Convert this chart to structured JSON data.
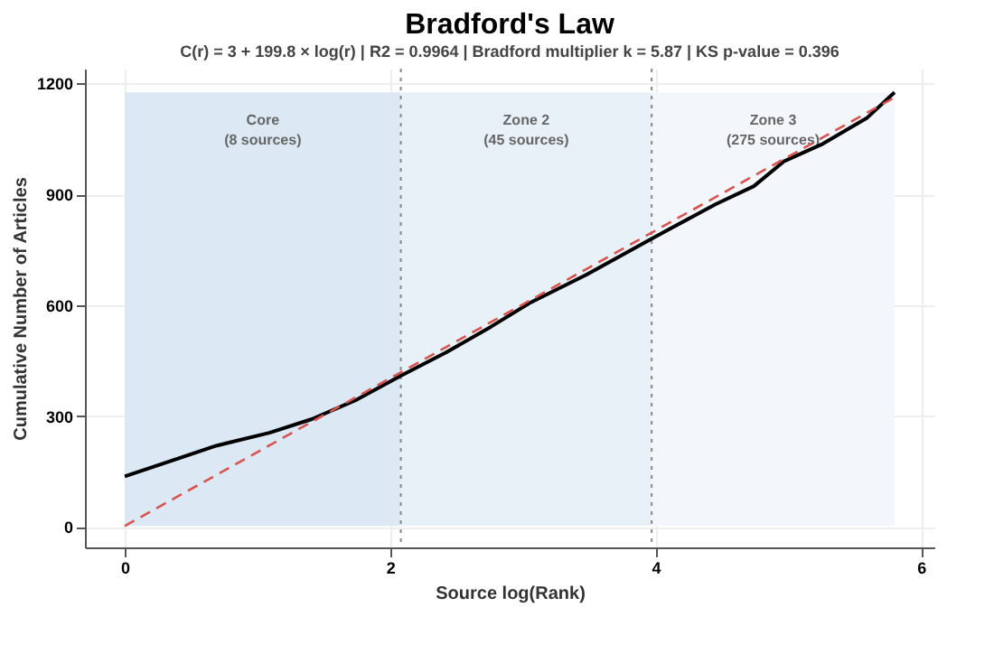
{
  "chart_data": {
    "type": "line",
    "title": "Bradford's Law",
    "subtitle": "C(r) = 3 + 199.8 × log(r)    |    R2 = 0.9964    |    Bradford multiplier k = 5.87    |    KS p-value = 0.396",
    "xlabel": "Source log(Rank)",
    "ylabel": "Cumulative Number of Articles",
    "series": [
      {
        "color": "#000000",
        "line_style": "solid",
        "x": [
          0,
          0.69,
          1.09,
          1.41,
          1.75,
          2.08,
          2.42,
          2.76,
          3.05,
          3.48,
          3.98,
          4.45,
          4.74,
          4.97,
          5.25,
          5.59,
          5.8
        ],
        "values": [
          137,
          220,
          255,
          292,
          345,
          409,
          472,
          542,
          606,
          683,
          782,
          873,
          922,
          990,
          1035,
          1106,
          1176
        ]
      },
      {
        "color": "#d9534f",
        "line_style": "dashed",
        "x": [
          0,
          5.8
        ],
        "values": [
          3,
          1162
        ]
      }
    ],
    "bands": [
      {
        "axis": "x",
        "from": 0,
        "to": 2.08,
        "label": "Core\n(8 sources)",
        "color": "#dce8f3"
      },
      {
        "axis": "x",
        "from": 2.08,
        "to": 3.97,
        "label": "Zone 2\n(45 sources)",
        "color": "#e9f1f8"
      },
      {
        "axis": "x",
        "from": 3.97,
        "to": 5.8,
        "label": "Zone 3\n(275 sources)",
        "color": "#f3f7fb"
      }
    ],
    "ref_lines": [
      {
        "axis": "x",
        "value": 2.08,
        "color": "#888888",
        "line_style": "dotted"
      },
      {
        "axis": "x",
        "value": 3.97,
        "color": "#888888",
        "line_style": "dotted"
      }
    ],
    "xlim": [
      -0.3,
      6.1
    ],
    "xticks": [
      0,
      2,
      4,
      6
    ],
    "ylim": [
      -55,
      1240
    ],
    "yticks": [
      0,
      300,
      600,
      900,
      1200
    ],
    "grid": true,
    "marker": "none"
  }
}
